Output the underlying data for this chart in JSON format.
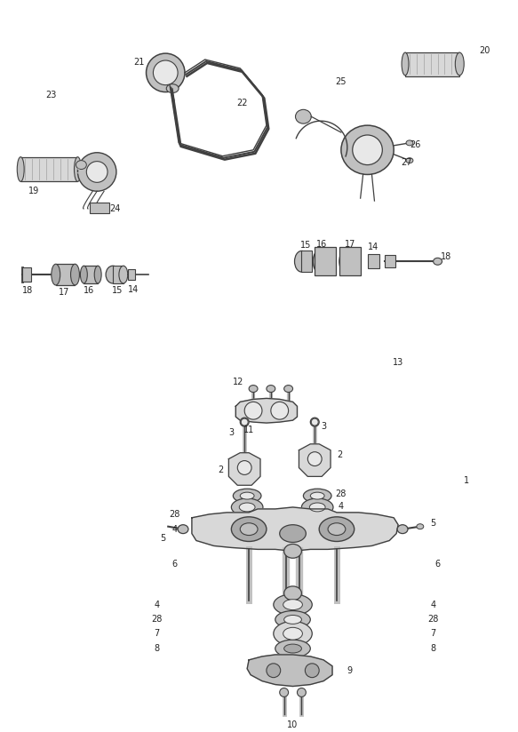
{
  "bg_color": "#ffffff",
  "line_color": "#404040",
  "text_color": "#222222",
  "dashed_color": "#999999",
  "gray_fill": "#d8d8d8",
  "dark_gray": "#aaaaaa",
  "mid_gray": "#c0c0c0",
  "light_gray": "#e8e8e8"
}
